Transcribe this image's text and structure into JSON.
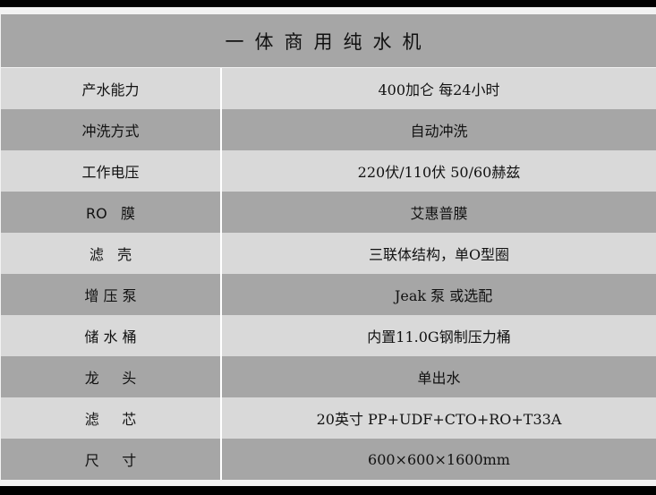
{
  "title": "一体商用纯水机",
  "rows": [
    {
      "label": "产水能力",
      "value": "400加仑 每24小时"
    },
    {
      "label": "冲洗方式",
      "value": "自动冲洗"
    },
    {
      "label": "工作电压",
      "value": "220伏/110伏 50/60赫兹"
    },
    {
      "label": "RO   膜",
      "value": "艾惠普膜"
    },
    {
      "label": "滤   壳",
      "value": "三联体结构，单O型圈"
    },
    {
      "label": "增 压 泵",
      "value": "  Jeak 泵 或选配"
    },
    {
      "label": "储 水 桶",
      "value": "内置11.0G钢制压力桶"
    },
    {
      "label": "龙     头",
      "value": "单出水"
    },
    {
      "label": "滤     芯",
      "value": "20英寸 PP+UDF+CTO+RO+T33A"
    },
    {
      "label": "尺     寸",
      "value": "600×600×1600mm"
    }
  ]
}
